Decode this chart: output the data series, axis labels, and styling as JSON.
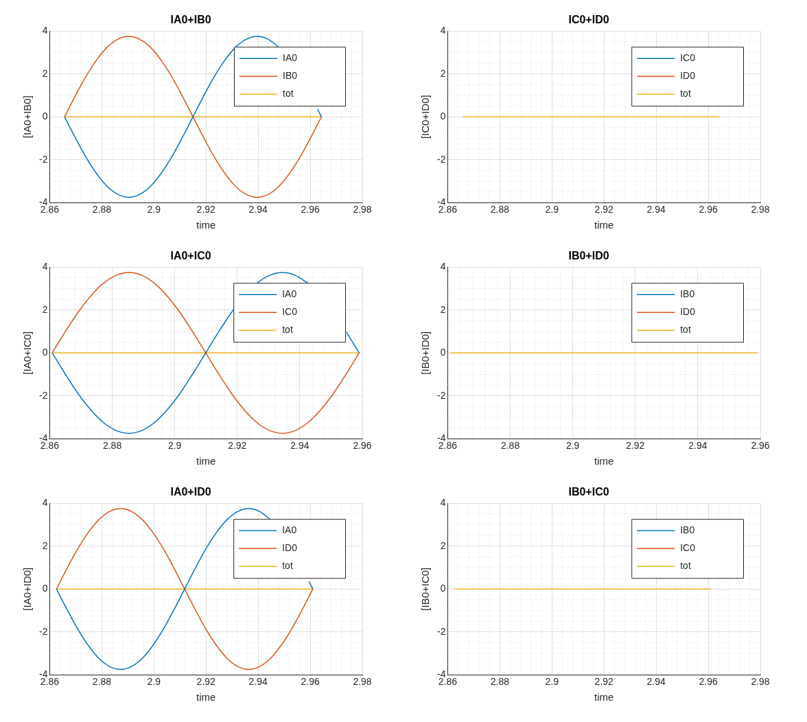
{
  "chart_data": [
    {
      "type": "line",
      "title": "IA0+IB0",
      "xlabel": "time",
      "ylabel": "[IA0+IB0]",
      "xlim": [
        2.86,
        2.98
      ],
      "xticks": [
        2.86,
        2.88,
        2.9,
        2.92,
        2.94,
        2.96,
        2.98
      ],
      "ylim": [
        -4,
        4
      ],
      "yticks": [
        -4,
        -2,
        0,
        2,
        4
      ],
      "grid": true,
      "legend": "top right",
      "marker": "none",
      "line_style": "solid",
      "x": [
        2.8657,
        2.8698,
        2.8739,
        2.878,
        2.8821,
        2.8862,
        2.8903,
        2.8945,
        2.8986,
        2.9027,
        2.9068,
        2.9109,
        2.915,
        2.9191,
        2.9232,
        2.9273,
        2.9314,
        2.9355,
        2.9396,
        2.9438,
        2.9479,
        2.952,
        2.9561,
        2.9602,
        2.9643
      ],
      "series": [
        {
          "name": "IA0",
          "color": "#0072bd",
          "x": [
            2.8657,
            2.8698,
            2.8739,
            2.878,
            2.8821,
            2.8862,
            2.8903,
            2.8945,
            2.8986,
            2.9027,
            2.9068,
            2.9109,
            2.915,
            2.9191,
            2.9232,
            2.9273,
            2.9314,
            2.9355,
            2.9396,
            2.9438,
            2.9479,
            2.952,
            2.9561,
            2.9602,
            2.9628,
            2.9643
          ],
          "values": [
            0,
            -0.97,
            -1.88,
            -2.65,
            -3.25,
            -3.62,
            -3.75,
            -3.62,
            -3.25,
            -2.65,
            -1.88,
            -0.97,
            0,
            0.97,
            1.88,
            2.65,
            3.25,
            3.62,
            3.75,
            3.62,
            3.25,
            null,
            null,
            null,
            0.35,
            0
          ]
        },
        {
          "name": "IB0",
          "color": "#d95319",
          "values": [
            0,
            0.97,
            1.88,
            2.65,
            3.25,
            3.62,
            3.75,
            3.62,
            3.25,
            2.65,
            1.88,
            0.97,
            0,
            -0.97,
            -1.88,
            -2.65,
            -3.25,
            -3.62,
            -3.75,
            -3.62,
            -3.25,
            -2.65,
            -1.88,
            -0.97,
            0
          ]
        },
        {
          "name": "tot",
          "color": "#edb120",
          "values": [
            0,
            0,
            0,
            0,
            0,
            0,
            0,
            0,
            0,
            0,
            0,
            0,
            0,
            0,
            0,
            0,
            0,
            0,
            0,
            0,
            0,
            0,
            0,
            0,
            0
          ]
        }
      ]
    },
    {
      "type": "line",
      "title": "IC0+ID0",
      "xlabel": "time",
      "ylabel": "[IC0+ID0]",
      "xlim": [
        2.86,
        2.98
      ],
      "xticks": [
        2.86,
        2.88,
        2.9,
        2.92,
        2.94,
        2.96,
        2.98
      ],
      "ylim": [
        -4,
        4
      ],
      "yticks": [
        -4,
        -2,
        0,
        2,
        4
      ],
      "grid": true,
      "legend": "top right",
      "marker": "none",
      "line_style": "solid",
      "x": [
        2.8657,
        2.9643
      ],
      "series": [
        {
          "name": "IC0",
          "color": "#0072bd",
          "values": [
            null,
            null
          ]
        },
        {
          "name": "ID0",
          "color": "#d95319",
          "values": [
            null,
            null
          ]
        },
        {
          "name": "tot",
          "color": "#edb120",
          "values": [
            0,
            0
          ]
        }
      ]
    },
    {
      "type": "line",
      "title": "IA0+IC0",
      "xlabel": "time",
      "ylabel": "[IA0+IC0]",
      "xlim": [
        2.86,
        2.96
      ],
      "xticks": [
        2.86,
        2.88,
        2.9,
        2.92,
        2.94,
        2.96
      ],
      "ylim": [
        -4,
        4
      ],
      "yticks": [
        -4,
        -2,
        0,
        2,
        4
      ],
      "grid": true,
      "legend": "top right",
      "marker": "none",
      "line_style": "solid",
      "x": [
        2.8608,
        2.8649,
        2.869,
        2.8731,
        2.8772,
        2.8813,
        2.8854,
        2.8894,
        2.8935,
        2.8976,
        2.9017,
        2.9058,
        2.9099,
        2.914,
        2.9181,
        2.9222,
        2.9263,
        2.9304,
        2.9345,
        2.9385,
        2.9426,
        2.9467,
        2.9508,
        2.9549,
        2.959
      ],
      "series": [
        {
          "name": "IA0",
          "color": "#0072bd",
          "values": [
            0,
            -0.97,
            -1.88,
            -2.65,
            -3.25,
            -3.62,
            -3.75,
            -3.62,
            -3.25,
            -2.65,
            -1.88,
            -0.97,
            0,
            0.97,
            1.88,
            2.65,
            3.25,
            3.62,
            3.75,
            3.62,
            3.25,
            null,
            null,
            0.97,
            0
          ]
        },
        {
          "name": "IC0",
          "color": "#d95319",
          "values": [
            0,
            0.97,
            1.88,
            2.65,
            3.25,
            3.62,
            3.75,
            3.62,
            3.25,
            2.65,
            1.88,
            0.97,
            0,
            -0.97,
            -1.88,
            -2.65,
            -3.25,
            -3.62,
            -3.75,
            -3.62,
            -3.25,
            -2.65,
            -1.88,
            -0.97,
            0
          ]
        },
        {
          "name": "tot",
          "color": "#edb120",
          "values": [
            0,
            0,
            0,
            0,
            0,
            0,
            0,
            0,
            0,
            0,
            0,
            0,
            0,
            0,
            0,
            0,
            0,
            0,
            0,
            0,
            0,
            0,
            0,
            0,
            0
          ]
        }
      ]
    },
    {
      "type": "line",
      "title": "IB0+ID0",
      "xlabel": "time",
      "ylabel": "[IB0+ID0]",
      "xlim": [
        2.86,
        2.96
      ],
      "xticks": [
        2.86,
        2.88,
        2.9,
        2.92,
        2.94,
        2.96
      ],
      "ylim": [
        -4,
        4
      ],
      "yticks": [
        -4,
        -2,
        0,
        2,
        4
      ],
      "grid": true,
      "legend": "top right",
      "marker": "none",
      "line_style": "solid",
      "x": [
        2.8608,
        2.959
      ],
      "series": [
        {
          "name": "IB0",
          "color": "#0072bd",
          "values": [
            null,
            null
          ]
        },
        {
          "name": "ID0",
          "color": "#d95319",
          "values": [
            null,
            null
          ]
        },
        {
          "name": "tot",
          "color": "#edb120",
          "values": [
            0,
            0
          ]
        }
      ]
    },
    {
      "type": "line",
      "title": "IA0+ID0",
      "xlabel": "time",
      "ylabel": "[IA0+ID0]",
      "xlim": [
        2.86,
        2.98
      ],
      "xticks": [
        2.86,
        2.88,
        2.9,
        2.92,
        2.94,
        2.96,
        2.98
      ],
      "ylim": [
        -4,
        4
      ],
      "yticks": [
        -4,
        -2,
        0,
        2,
        4
      ],
      "grid": true,
      "legend": "top right",
      "marker": "none",
      "line_style": "solid",
      "x": [
        2.8626,
        2.8667,
        2.8708,
        2.8749,
        2.879,
        2.8831,
        2.8872,
        2.8913,
        2.8954,
        2.8995,
        2.9036,
        2.9077,
        2.9118,
        2.9159,
        2.92,
        2.9241,
        2.9282,
        2.9323,
        2.9364,
        2.9405,
        2.9446,
        2.9487,
        2.9528,
        2.9569,
        2.961
      ],
      "series": [
        {
          "name": "IA0",
          "color": "#0072bd",
          "x": [
            2.8626,
            2.8667,
            2.8708,
            2.8749,
            2.879,
            2.8831,
            2.8872,
            2.8913,
            2.8954,
            2.8995,
            2.9036,
            2.9077,
            2.9118,
            2.9159,
            2.92,
            2.9241,
            2.9282,
            2.9323,
            2.9364,
            2.9405,
            2.9446,
            2.9487,
            2.9528,
            2.9569,
            2.9595,
            2.961
          ],
          "values": [
            0,
            -0.97,
            -1.88,
            -2.65,
            -3.25,
            -3.62,
            -3.75,
            -3.62,
            -3.25,
            -2.65,
            -1.88,
            -0.97,
            0,
            0.97,
            1.88,
            2.65,
            3.25,
            3.62,
            3.75,
            3.62,
            3.25,
            null,
            null,
            null,
            0.35,
            0
          ]
        },
        {
          "name": "ID0",
          "color": "#d95319",
          "values": [
            0,
            0.97,
            1.88,
            2.65,
            3.25,
            3.62,
            3.75,
            3.62,
            3.25,
            2.65,
            1.88,
            0.97,
            0,
            -0.97,
            -1.88,
            -2.65,
            -3.25,
            -3.62,
            -3.75,
            -3.62,
            -3.25,
            -2.65,
            -1.88,
            -0.97,
            0
          ]
        },
        {
          "name": "tot",
          "color": "#edb120",
          "values": [
            0,
            0,
            0,
            0,
            0,
            0,
            0,
            0,
            0,
            0,
            0,
            0,
            0,
            0,
            0,
            0,
            0,
            0,
            0,
            0,
            0,
            0,
            0,
            0,
            0
          ]
        }
      ]
    },
    {
      "type": "line",
      "title": "IB0+IC0",
      "xlabel": "time",
      "ylabel": "[IB0+IC0]",
      "xlim": [
        2.86,
        2.98
      ],
      "xticks": [
        2.86,
        2.88,
        2.9,
        2.92,
        2.94,
        2.96,
        2.98
      ],
      "ylim": [
        -4,
        4
      ],
      "yticks": [
        -4,
        -2,
        0,
        2,
        4
      ],
      "grid": true,
      "legend": "top right",
      "marker": "none",
      "line_style": "solid",
      "x": [
        2.8626,
        2.961
      ],
      "series": [
        {
          "name": "IB0",
          "color": "#0072bd",
          "values": [
            null,
            null
          ]
        },
        {
          "name": "IC0",
          "color": "#d95319",
          "values": [
            null,
            null
          ]
        },
        {
          "name": "tot",
          "color": "#edb120",
          "values": [
            0,
            0
          ]
        }
      ]
    }
  ]
}
